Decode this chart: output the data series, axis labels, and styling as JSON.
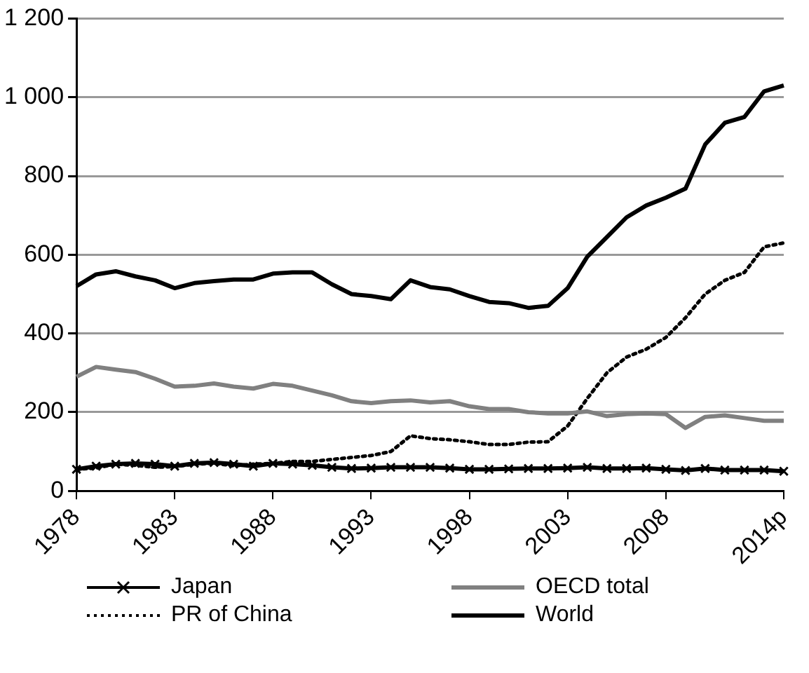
{
  "chart_data": {
    "type": "line",
    "categories": [
      "1978",
      null,
      null,
      null,
      null,
      "1983",
      null,
      null,
      null,
      null,
      "1988",
      null,
      null,
      null,
      null,
      "1993",
      null,
      null,
      null,
      null,
      "1998",
      null,
      null,
      null,
      null,
      "2003",
      null,
      null,
      null,
      null,
      "2008",
      null,
      null,
      null,
      null,
      null,
      "2014p"
    ],
    "series": [
      {
        "name": "Japan",
        "color": "#000000",
        "marker": "cross",
        "line_style": "solid",
        "values": [
          55,
          63,
          68,
          70,
          68,
          63,
          70,
          72,
          68,
          63,
          70,
          68,
          65,
          60,
          57,
          58,
          60,
          60,
          60,
          58,
          55,
          55,
          56,
          57,
          57,
          58,
          60,
          57,
          57,
          58,
          55,
          52,
          57,
          53,
          53,
          53,
          50
        ]
      },
      {
        "name": "OECD total",
        "color": "#808080",
        "marker": "none",
        "line_style": "solid",
        "values": [
          290,
          315,
          308,
          302,
          285,
          265,
          267,
          273,
          265,
          260,
          272,
          267,
          255,
          243,
          228,
          223,
          228,
          230,
          225,
          228,
          215,
          208,
          208,
          200,
          197,
          197,
          202,
          190,
          195,
          197,
          195,
          160,
          188,
          192,
          185,
          178,
          178
        ]
      },
      {
        "name": "PR of China",
        "color": "#000000",
        "marker": "none",
        "line_style": "dotted",
        "values": [
          55,
          58,
          68,
          65,
          60,
          62,
          68,
          70,
          64,
          68,
          70,
          75,
          75,
          80,
          85,
          90,
          100,
          140,
          133,
          130,
          125,
          118,
          118,
          124,
          125,
          165,
          235,
          300,
          340,
          360,
          390,
          440,
          500,
          535,
          555,
          620,
          630
        ]
      },
      {
        "name": "World",
        "color": "#000000",
        "marker": "none",
        "line_style": "solid",
        "values": [
          520,
          550,
          558,
          545,
          535,
          515,
          528,
          533,
          537,
          537,
          552,
          555,
          555,
          525,
          500,
          495,
          487,
          535,
          518,
          512,
          495,
          480,
          477,
          465,
          470,
          515,
          595,
          645,
          695,
          725,
          745,
          768,
          880,
          935,
          950,
          1015,
          1030
        ]
      }
    ],
    "ylim": [
      0,
      1200
    ],
    "yticks": [
      0,
      200,
      400,
      600,
      800,
      {
        "value": 1000,
        "label": "1 000"
      },
      {
        "value": 1200,
        "label": "1 200"
      }
    ],
    "grid": "y",
    "legend": "bottom"
  }
}
